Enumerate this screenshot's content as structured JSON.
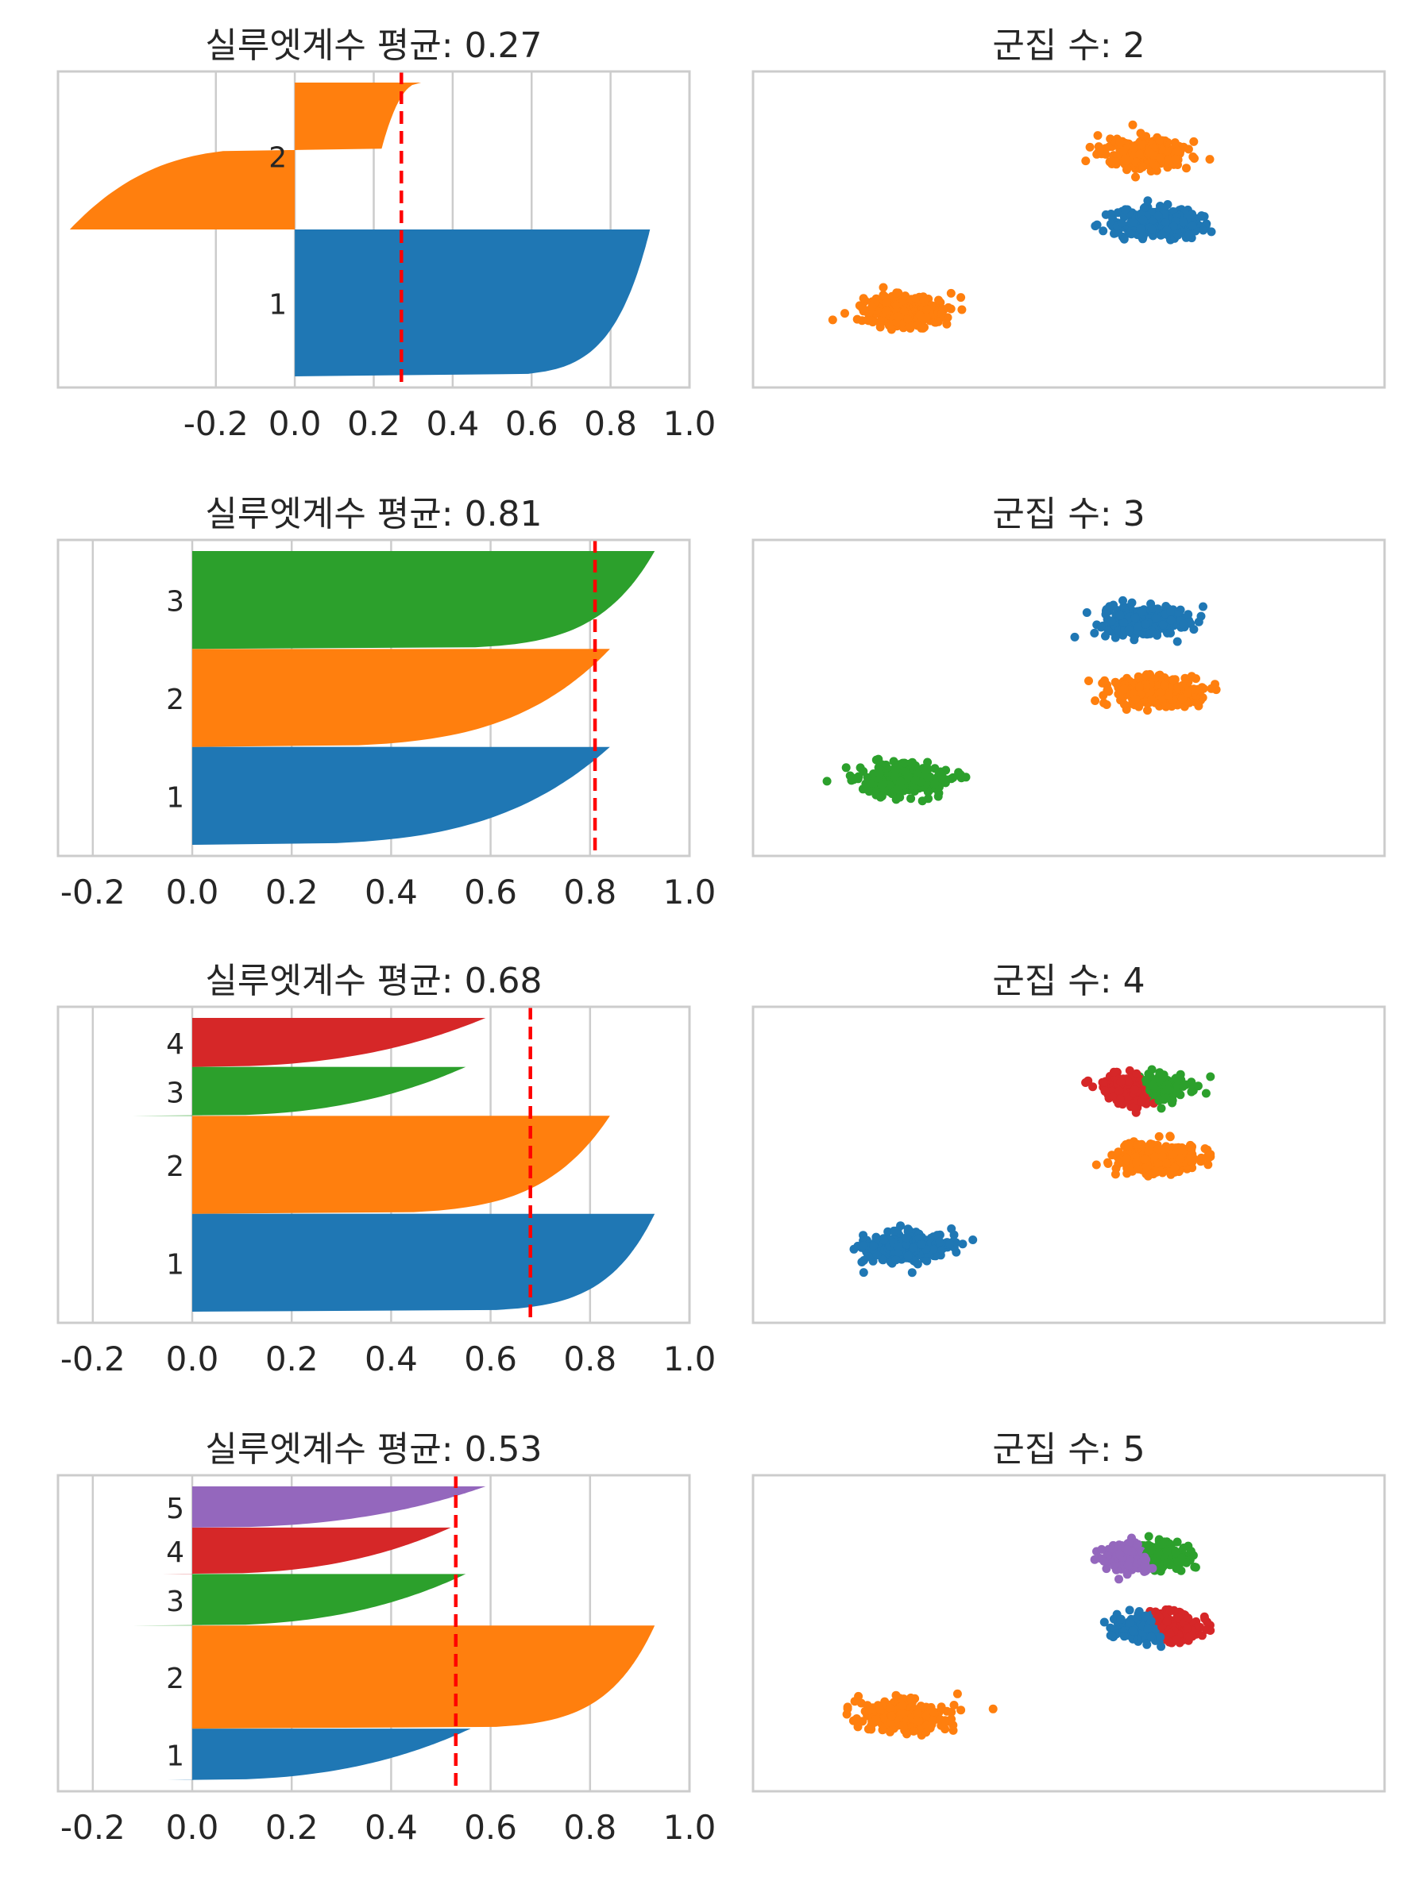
{
  "colors": {
    "c1": "#1f77b4",
    "c2": "#ff7f0e",
    "c3": "#2ca02c",
    "c4": "#d62728",
    "c5": "#9467bd",
    "mean_line": "#ff0000",
    "grid": "#cccccc",
    "frame": "#cccccc"
  },
  "chart_data": [
    {
      "type": "area",
      "title": "실루엣계수 평균:  0.27",
      "mean": 0.27,
      "xlim": [
        -0.6,
        1.0
      ],
      "xticks": [
        "-0.2",
        "0.0",
        "0.2",
        "0.4",
        "0.6",
        "0.8",
        "1.0"
      ],
      "xtick_values": [
        -0.2,
        0.0,
        0.2,
        0.4,
        0.6,
        0.8,
        1.0
      ],
      "grid": true,
      "clusters": [
        {
          "label": "1",
          "color": "c1",
          "max": 0.9,
          "min": 0.0,
          "size": 1000,
          "bend": 0.15
        },
        {
          "label": "2",
          "color": "c2",
          "max": 0.32,
          "min": -0.57,
          "size": 1000,
          "plateau": 0.55,
          "mid": -0.02
        }
      ]
    },
    {
      "type": "scatter",
      "title": "군집 수: 2",
      "blobs": [
        {
          "cx": 0.24,
          "cy": 0.76,
          "color": "c2"
        },
        {
          "cx": 0.62,
          "cy": 0.26,
          "color": "c2"
        },
        {
          "cx": 0.64,
          "cy": 0.48,
          "color": "c1"
        }
      ]
    },
    {
      "type": "area",
      "title": "실루엣계수 평균:  0.81",
      "mean": 0.81,
      "xlim": [
        -0.27,
        1.0
      ],
      "xticks": [
        "-0.2",
        "0.0",
        "0.2",
        "0.4",
        "0.6",
        "0.8",
        "1.0"
      ],
      "xtick_values": [
        -0.2,
        0.0,
        0.2,
        0.4,
        0.6,
        0.8,
        1.0
      ],
      "grid": true,
      "clusters": [
        {
          "label": "1",
          "color": "c1",
          "max": 0.84,
          "min": 0.0,
          "size": 1000,
          "bend": 0.6
        },
        {
          "label": "2",
          "color": "c2",
          "max": 0.84,
          "min": 0.0,
          "size": 1000,
          "bend": 0.5
        },
        {
          "label": "3",
          "color": "c3",
          "max": 0.93,
          "min": 0.0,
          "size": 1000,
          "bend": 0.2
        }
      ]
    },
    {
      "type": "scatter",
      "title": "군집 수: 3",
      "blobs": [
        {
          "cx": 0.24,
          "cy": 0.76,
          "color": "c3"
        },
        {
          "cx": 0.64,
          "cy": 0.48,
          "color": "c2"
        },
        {
          "cx": 0.62,
          "cy": 0.26,
          "color": "c1"
        }
      ]
    },
    {
      "type": "area",
      "title": "실루엣계수 평균:  0.68",
      "mean": 0.68,
      "xlim": [
        -0.27,
        1.0
      ],
      "xticks": [
        "-0.2",
        "0.0",
        "0.2",
        "0.4",
        "0.6",
        "0.8",
        "1.0"
      ],
      "xtick_values": [
        -0.2,
        0.0,
        0.2,
        0.4,
        0.6,
        0.8,
        1.0
      ],
      "grid": true,
      "clusters": [
        {
          "label": "1",
          "color": "c1",
          "max": 0.93,
          "min": 0.0,
          "size": 1000,
          "bend": 0.15
        },
        {
          "label": "2",
          "color": "c2",
          "max": 0.84,
          "min": 0.0,
          "size": 1000,
          "bend": 0.3
        },
        {
          "label": "3",
          "color": "c3",
          "max": 0.55,
          "min": -0.12,
          "size": 500,
          "bend": 1.0
        },
        {
          "label": "4",
          "color": "c4",
          "max": 0.59,
          "min": 0.0,
          "size": 500,
          "bend": 1.0
        }
      ]
    },
    {
      "type": "scatter",
      "title": "군집 수: 4",
      "blobs": [
        {
          "cx": 0.24,
          "cy": 0.76,
          "color": "c1"
        },
        {
          "cx": 0.64,
          "cy": 0.48,
          "color": "c2"
        },
        {
          "cx": 0.62,
          "cy": 0.26,
          "color": "c4",
          "split": "c3"
        }
      ]
    },
    {
      "type": "area",
      "title": "실루엣계수 평균:  0.53",
      "mean": 0.53,
      "xlim": [
        -0.27,
        1.0
      ],
      "xticks": [
        "-0.2",
        "0.0",
        "0.2",
        "0.4",
        "0.6",
        "0.8",
        "1.0"
      ],
      "xtick_values": [
        -0.2,
        0.0,
        0.2,
        0.4,
        0.6,
        0.8,
        1.0
      ],
      "grid": true,
      "clusters": [
        {
          "label": "1",
          "color": "c1",
          "max": 0.56,
          "min": -0.05,
          "size": 500,
          "bend": 1.0
        },
        {
          "label": "2",
          "color": "c2",
          "max": 0.93,
          "min": 0.0,
          "size": 1000,
          "bend": 0.15
        },
        {
          "label": "3",
          "color": "c3",
          "max": 0.55,
          "min": -0.12,
          "size": 500,
          "bend": 1.0
        },
        {
          "label": "4",
          "color": "c4",
          "max": 0.52,
          "min": -0.06,
          "size": 450,
          "bend": 1.0
        },
        {
          "label": "5",
          "color": "c5",
          "max": 0.59,
          "min": 0.0,
          "size": 400,
          "bend": 1.0
        }
      ]
    },
    {
      "type": "scatter",
      "title": "군집 수: 5",
      "blobs": [
        {
          "cx": 0.24,
          "cy": 0.76,
          "color": "c2"
        },
        {
          "cx": 0.64,
          "cy": 0.48,
          "color": "c1",
          "split": "c4"
        },
        {
          "cx": 0.62,
          "cy": 0.26,
          "color": "c5",
          "split": "c3"
        }
      ]
    }
  ]
}
